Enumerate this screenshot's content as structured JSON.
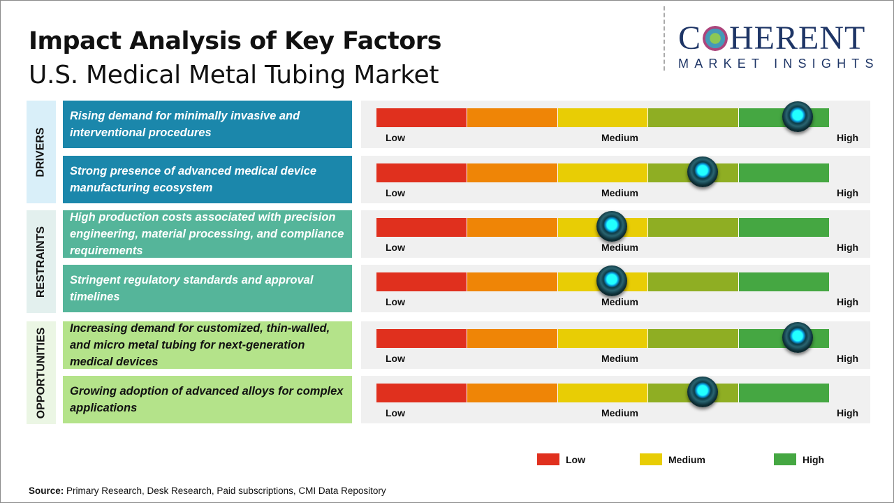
{
  "header": {
    "title": "Impact Analysis of Key Factors",
    "subtitle": "U.S. Medical Metal Tubing Market"
  },
  "logo": {
    "main_left": "C",
    "main_right": "HERENT",
    "sub": "MARKET INSIGHTS"
  },
  "scale_labels": {
    "low": "Low",
    "medium": "Medium",
    "high": "High"
  },
  "segment_colors": [
    "#e0301e",
    "#ef8506",
    "#e8cd05",
    "#8fae23",
    "#45a742"
  ],
  "groups": [
    {
      "label": "DRIVERS",
      "label_bg": "#d9eff9",
      "box_color": "#1b87ab",
      "text_color": "#ffffff",
      "factors": [
        {
          "text": "Rising demand for minimally invasive and interventional procedures",
          "impact_level": 0.93
        },
        {
          "text": "Strong presence of advanced medical device manufacturing ecosystem",
          "impact_level": 0.72
        }
      ]
    },
    {
      "label": "RESTRAINTS",
      "label_bg": "#e3f0ee",
      "box_color": "#55b59a",
      "text_color": "#ffffff",
      "factors": [
        {
          "text": "High production costs associated with precision engineering, material processing, and compliance requirements",
          "impact_level": 0.52
        },
        {
          "text": "Stringent regulatory standards and approval timelines",
          "impact_level": 0.52
        }
      ]
    },
    {
      "label": "OPPORTUNITIES",
      "label_bg": "#ebf6e4",
      "box_color": "#b4e38a",
      "text_color": "#111111",
      "factors": [
        {
          "text": "Increasing demand for customized, thin-walled, and micro metal tubing for next-generation medical devices",
          "impact_level": 0.93
        },
        {
          "text": "Growing adoption of advanced alloys for complex applications",
          "impact_level": 0.72
        }
      ]
    }
  ],
  "legend": [
    {
      "label": "Low",
      "color": "#e0301e"
    },
    {
      "label": "Medium",
      "color": "#e8cd05"
    },
    {
      "label": "High",
      "color": "#45a742"
    }
  ],
  "source": {
    "label": "Source:",
    "text": " Primary Research, Desk Research, Paid subscriptions, CMI Data Repository"
  }
}
